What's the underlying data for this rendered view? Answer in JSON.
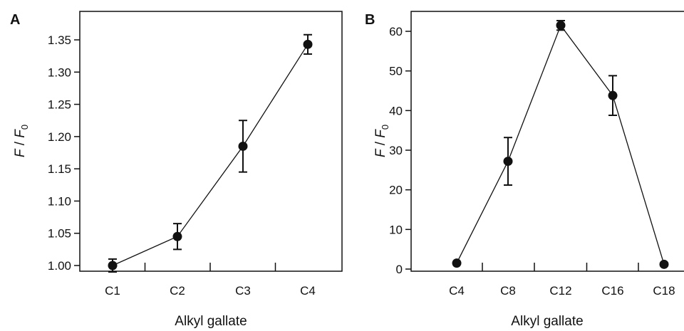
{
  "chart_data": [
    {
      "type": "line",
      "panel": "A",
      "categories": [
        "C1",
        "C2",
        "C3",
        "C4"
      ],
      "values": [
        1.0,
        1.045,
        1.185,
        1.343
      ],
      "errors": [
        0.01,
        0.02,
        0.04,
        0.015
      ],
      "ylim": [
        0.99,
        1.365
      ],
      "yticks": [
        "1.00",
        "1.05",
        "1.10",
        "1.15",
        "1.20",
        "1.25",
        "1.30",
        "1.35"
      ],
      "xlabel": "Alkyl gallate",
      "ylabel_parts": [
        "F",
        " / ",
        "F",
        "0"
      ],
      "grid": false,
      "legend": "none"
    },
    {
      "type": "line",
      "panel": "B",
      "categories": [
        "C4",
        "C8",
        "C12",
        "C16",
        "C18"
      ],
      "values": [
        1.5,
        27.2,
        61.5,
        43.8,
        1.2
      ],
      "errors": [
        0,
        6.0,
        1.2,
        5.0,
        0
      ],
      "ylim": [
        -1,
        65
      ],
      "yticks": [
        "0",
        "10",
        "20",
        "30",
        "40",
        "50",
        "60"
      ],
      "xlabel": "Alkyl gallate",
      "ylabel_parts": [
        "F",
        " / ",
        "F",
        "0"
      ],
      "grid": false,
      "legend": "none"
    }
  ]
}
